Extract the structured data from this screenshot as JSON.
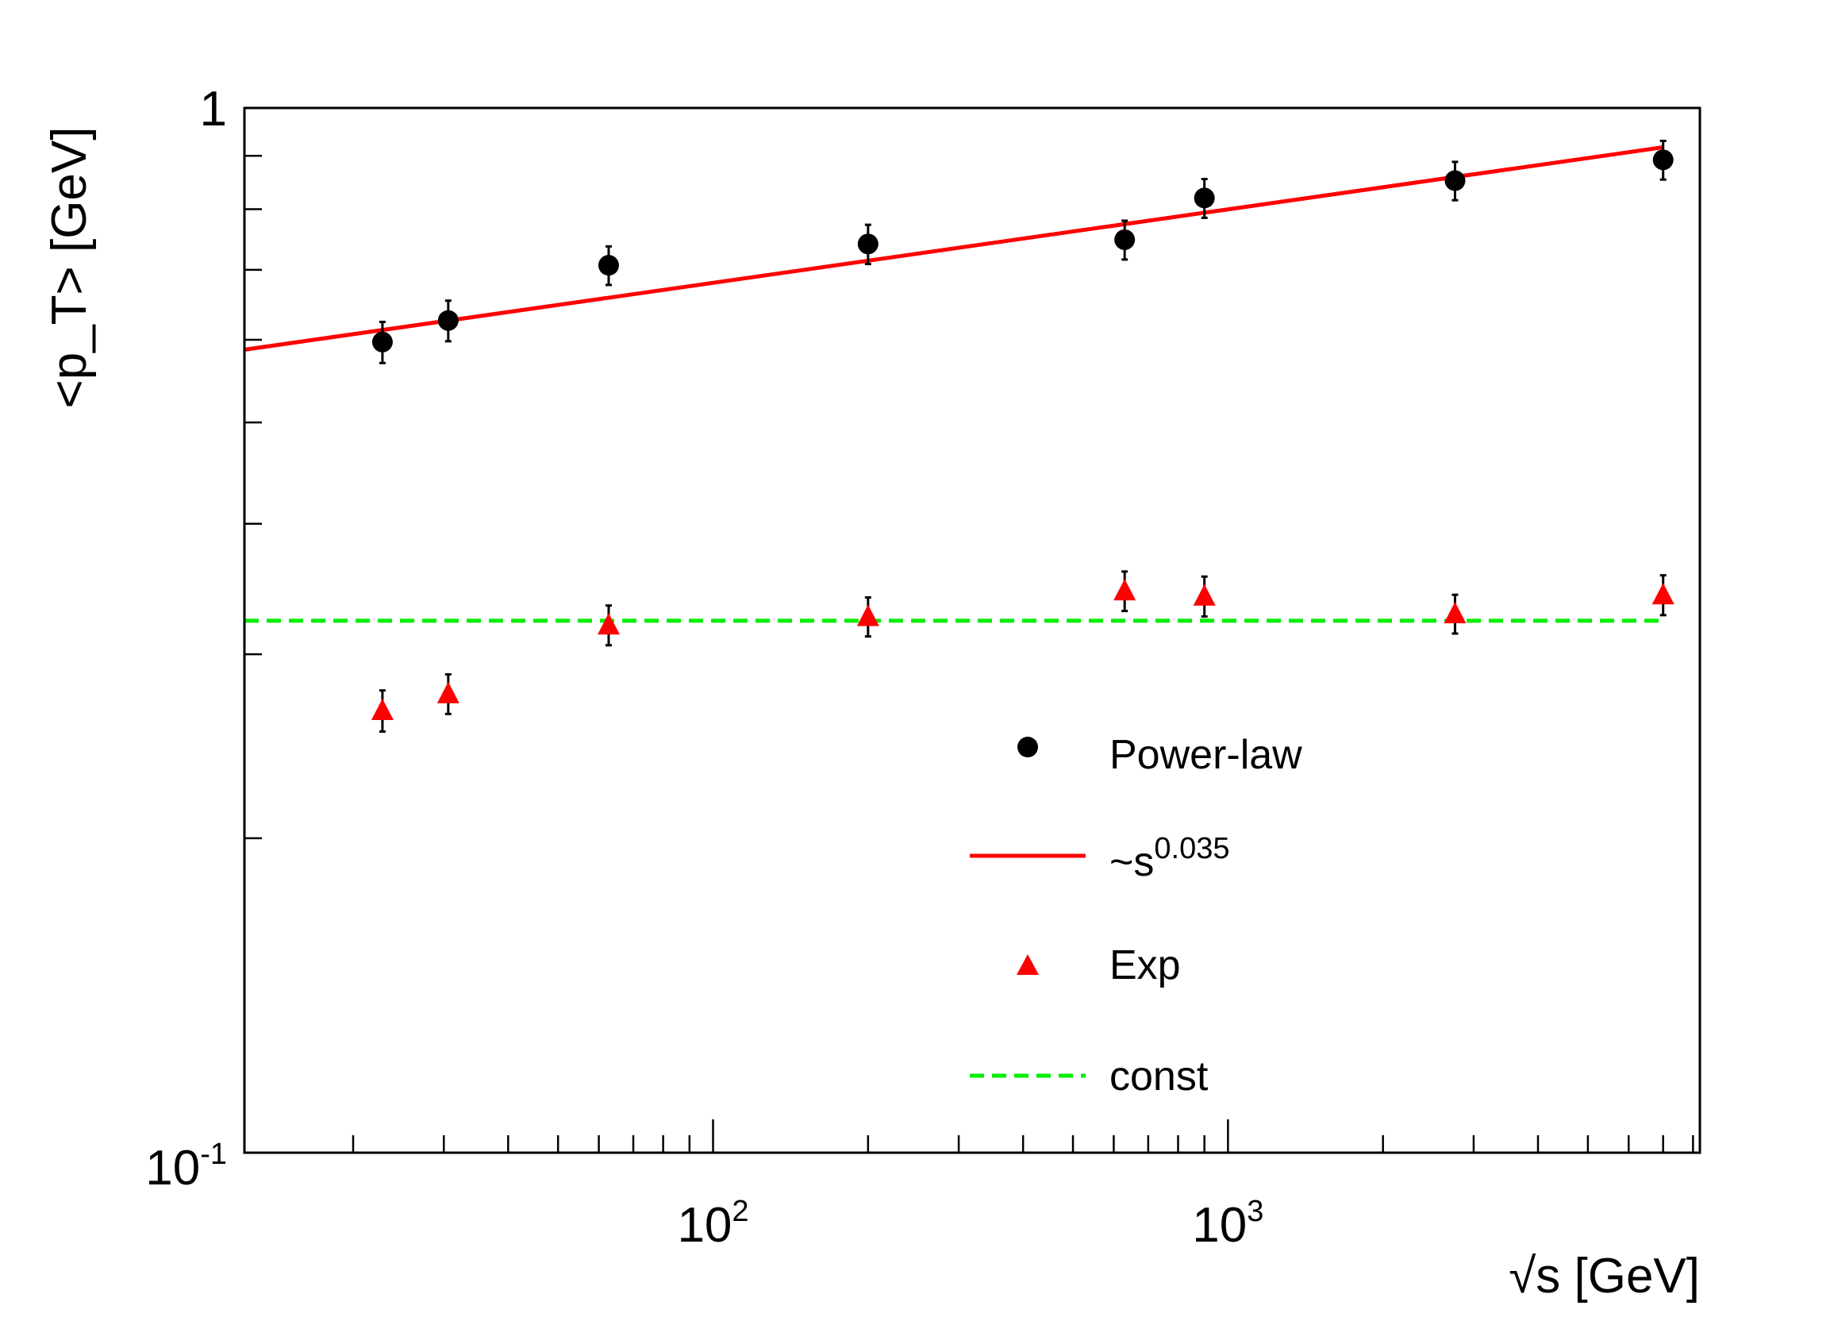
{
  "chart_data": {
    "type": "scatter",
    "xlabel": "√s [GeV]",
    "ylabel": "<p_T> [GeV]",
    "x_scale": "log",
    "y_scale": "log",
    "xlim": [
      12.3,
      8250
    ],
    "ylim": [
      0.1,
      1.0
    ],
    "x_major_ticks": [
      {
        "value": 100,
        "base": "10",
        "exp": "2"
      },
      {
        "value": 1000,
        "base": "10",
        "exp": "3"
      }
    ],
    "y_major_ticks": [
      {
        "value": 1.0,
        "label": "1"
      },
      {
        "value": 0.1,
        "base": "10",
        "exp": "-1"
      }
    ],
    "grid": false,
    "legend_position": "bottom-right",
    "series": [
      {
        "name": "Power-law",
        "marker": "circle",
        "color": "#000000",
        "points": [
          {
            "x": 22.8,
            "y": 0.597,
            "err": 0.027
          },
          {
            "x": 30.6,
            "y": 0.626,
            "err": 0.028
          },
          {
            "x": 62.7,
            "y": 0.707,
            "err": 0.03
          },
          {
            "x": 200,
            "y": 0.741,
            "err": 0.032
          },
          {
            "x": 630,
            "y": 0.748,
            "err": 0.032
          },
          {
            "x": 900,
            "y": 0.82,
            "err": 0.035
          },
          {
            "x": 2760,
            "y": 0.852,
            "err": 0.036
          },
          {
            "x": 7000,
            "y": 0.892,
            "err": 0.038
          }
        ]
      },
      {
        "name": "~s",
        "name_exponent": "0.035",
        "line": "solid",
        "color": "#ff0000",
        "x": [
          12.3,
          7000
        ],
        "y": [
          0.587,
          0.917
        ]
      },
      {
        "name": "Exp",
        "marker": "triangle",
        "color": "#ff0000",
        "points": [
          {
            "x": 22.8,
            "y": 0.265,
            "err": 0.012
          },
          {
            "x": 30.6,
            "y": 0.275,
            "err": 0.012
          },
          {
            "x": 62.7,
            "y": 0.32,
            "err": 0.014
          },
          {
            "x": 200,
            "y": 0.326,
            "err": 0.014
          },
          {
            "x": 630,
            "y": 0.345,
            "err": 0.015
          },
          {
            "x": 900,
            "y": 0.341,
            "err": 0.015
          },
          {
            "x": 2760,
            "y": 0.328,
            "err": 0.014
          },
          {
            "x": 7000,
            "y": 0.342,
            "err": 0.015
          }
        ]
      },
      {
        "name": "const",
        "line": "dashed",
        "color": "#00ee00",
        "x": [
          12.3,
          7000
        ],
        "y": [
          0.323,
          0.323
        ]
      }
    ]
  }
}
